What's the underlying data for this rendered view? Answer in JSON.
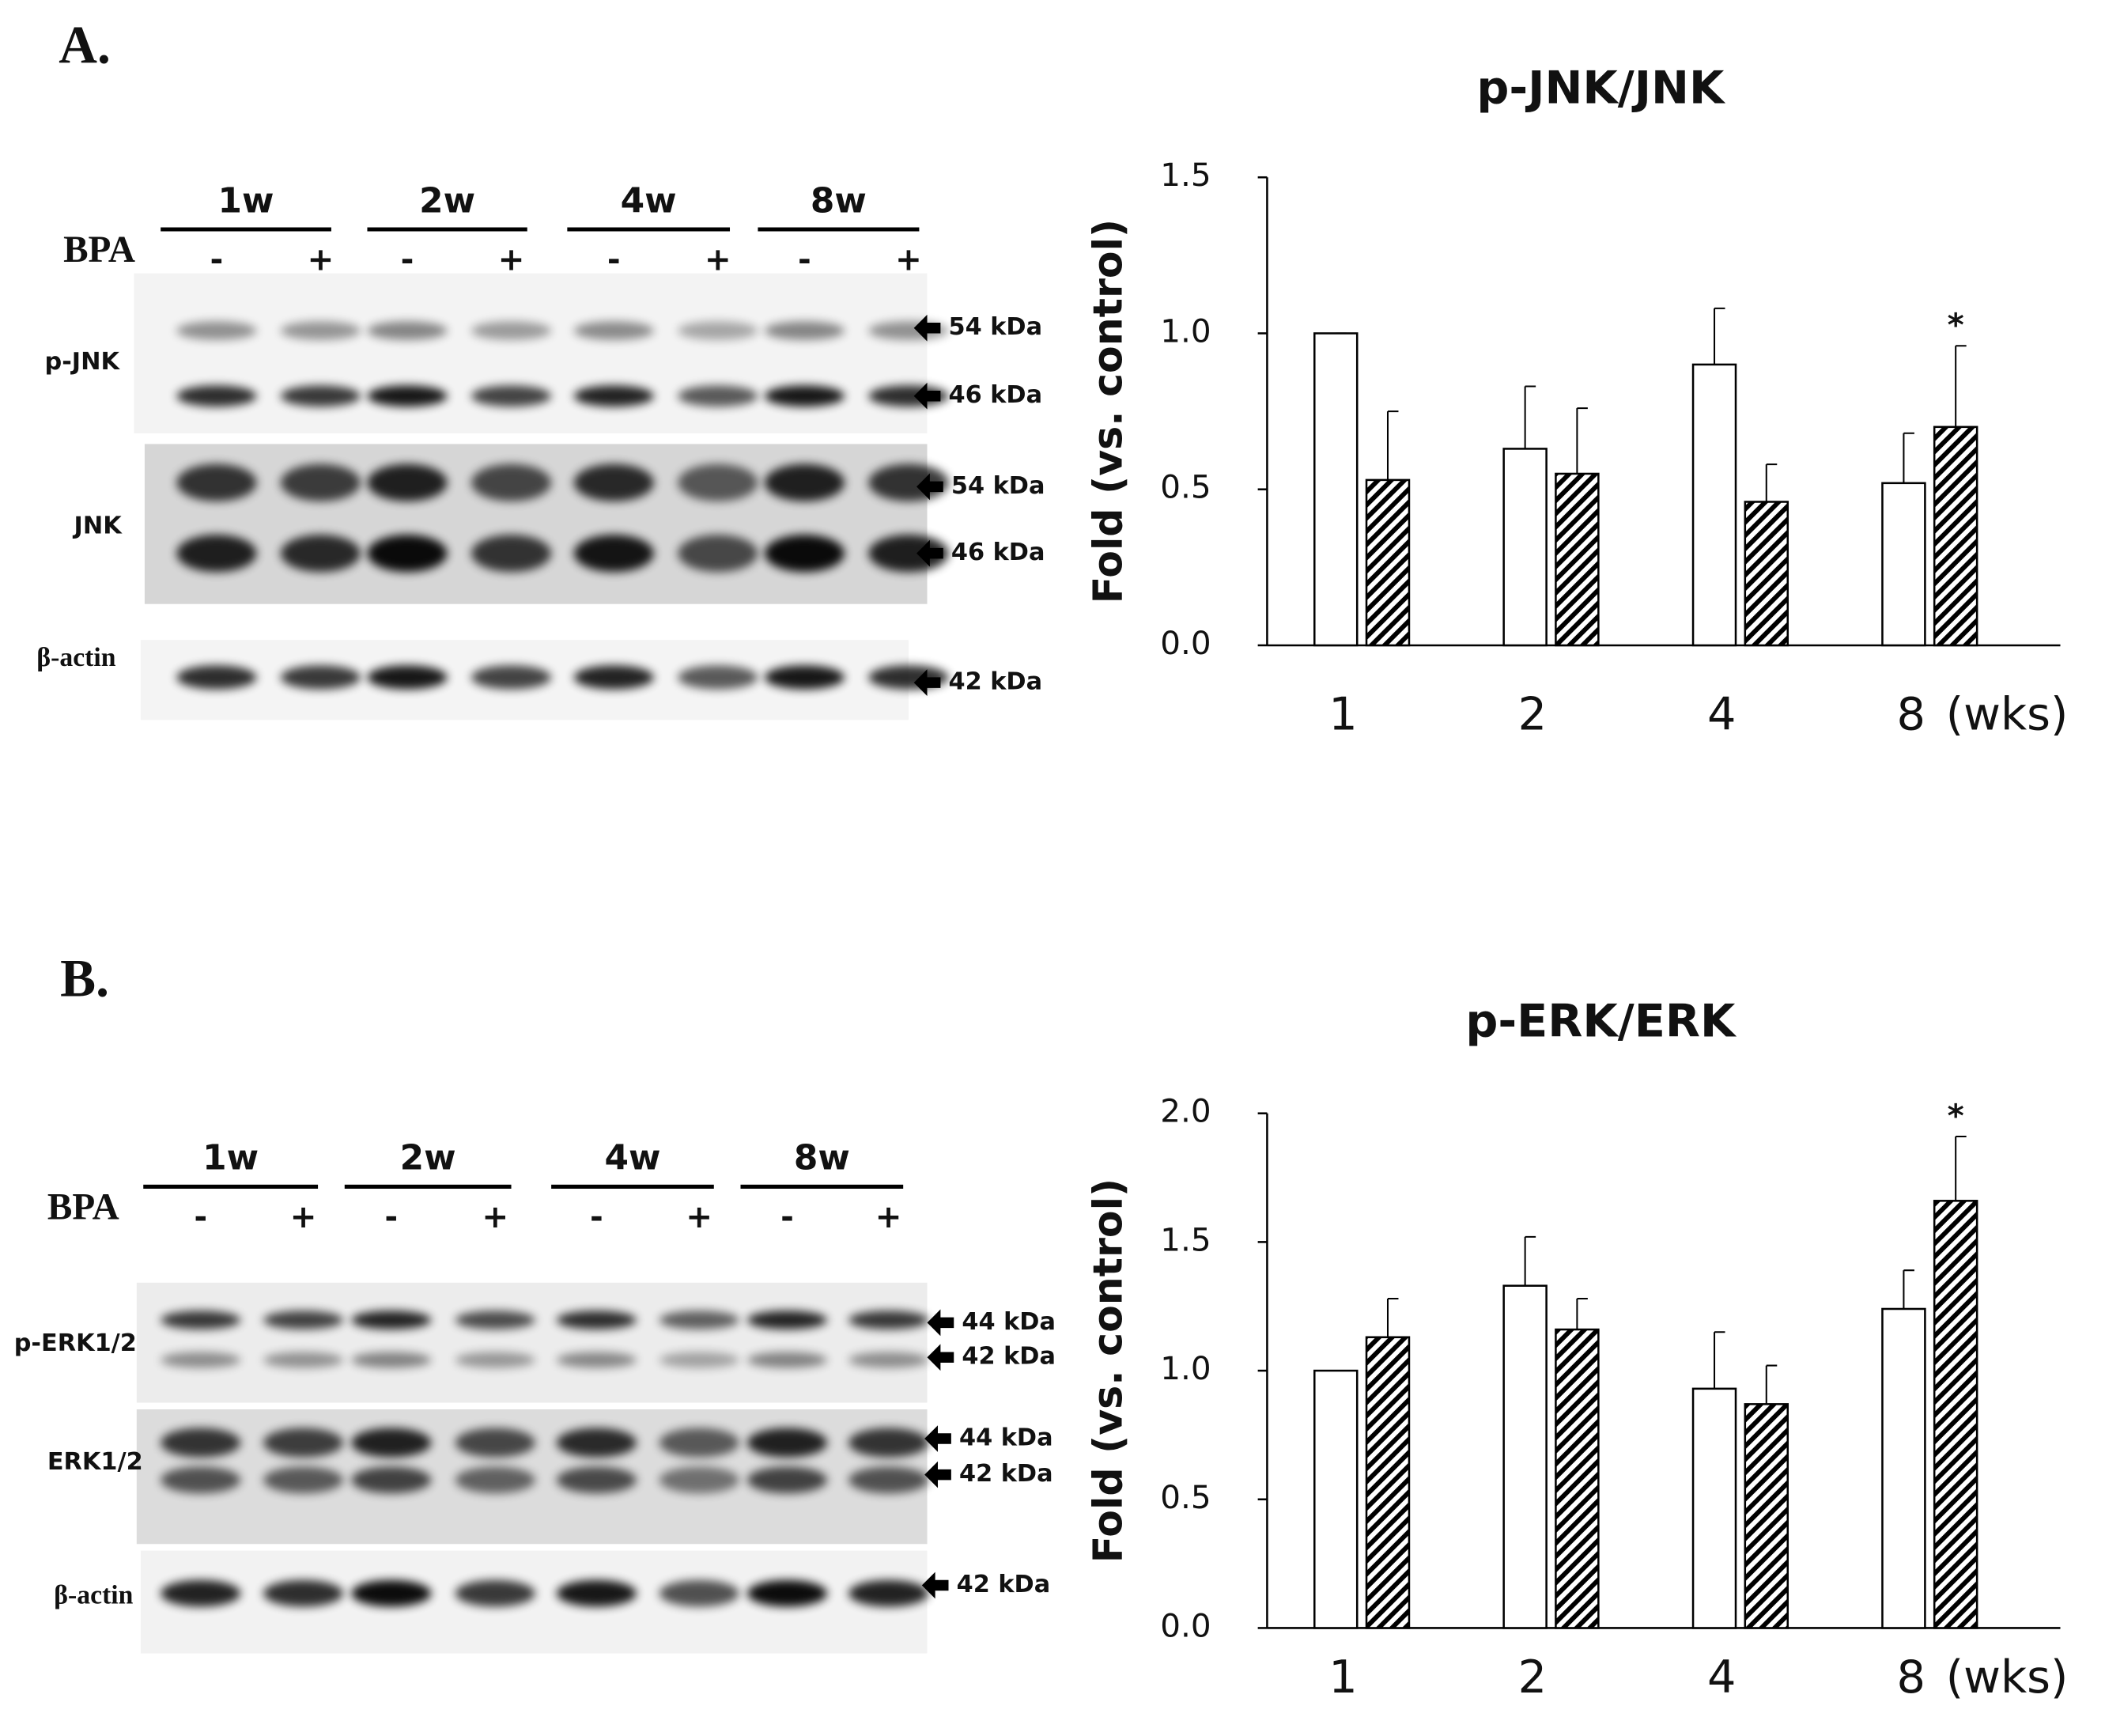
{
  "chart_data": [
    {
      "type": "bar",
      "title": "p-JNK/JNK",
      "y_label": "Fold (vs. control)",
      "x_unit": "(wks)",
      "categories": [
        "1",
        "2",
        "4",
        "8"
      ],
      "series": [
        {
          "color": "#ffffff",
          "hatch": false,
          "values": [
            1.0,
            0.63,
            0.9,
            0.52
          ],
          "errors": [
            0,
            0.2,
            0.18,
            0.16
          ]
        },
        {
          "color": "#000000",
          "hatch": true,
          "values": [
            0.53,
            0.55,
            0.46,
            0.7
          ],
          "errors": [
            0.22,
            0.21,
            0.12,
            0.26
          ],
          "significance": [
            null,
            null,
            null,
            "*"
          ]
        }
      ],
      "ylim": [
        0,
        1.5
      ],
      "yticks": [
        {
          "value": 0,
          "label": "0.0"
        },
        0.5,
        {
          "value": 1,
          "label": "1.0"
        },
        1.5
      ]
    },
    {
      "type": "bar",
      "title": "p-ERK/ERK",
      "y_label": "Fold (vs. control)",
      "x_unit": "(wks)",
      "categories": [
        "1",
        "2",
        "4",
        "8"
      ],
      "series": [
        {
          "color": "#ffffff",
          "hatch": false,
          "values": [
            1.0,
            1.33,
            0.93,
            1.24
          ],
          "errors": [
            0,
            0.19,
            0.22,
            0.15
          ]
        },
        {
          "color": "#000000",
          "hatch": true,
          "values": [
            1.13,
            1.16,
            0.87,
            1.66
          ],
          "errors": [
            0.15,
            0.12,
            0.15,
            0.25
          ],
          "significance": [
            null,
            null,
            null,
            "*"
          ]
        }
      ],
      "ylim": [
        0,
        2.0
      ],
      "yticks": [
        {
          "value": 0,
          "label": "0.0"
        },
        0.5,
        {
          "value": 1,
          "label": "1.0"
        },
        1.5,
        {
          "value": 2,
          "label": "2.0"
        }
      ]
    }
  ],
  "blots": [
    {
      "label": "A.",
      "treatment": "BPA",
      "groups": [
        "1w",
        "2w",
        "4w",
        "8w"
      ],
      "signs": [
        "-",
        "+",
        "-",
        "+",
        "-",
        "+",
        "-",
        "+"
      ],
      "rows": [
        {
          "label": "p-JNK",
          "markers": [
            "54 kDa",
            "46 kDa"
          ]
        },
        {
          "label": "JNK",
          "markers": [
            "54 kDa",
            "46 kDa"
          ]
        },
        {
          "label": "β-actin",
          "markers": [
            "42 kDa"
          ]
        }
      ]
    },
    {
      "label": "B.",
      "treatment": "BPA",
      "groups": [
        "1w",
        "2w",
        "4w",
        "8w"
      ],
      "signs": [
        "-",
        "+",
        "-",
        "+",
        "-",
        "+",
        "-",
        "+"
      ],
      "rows": [
        {
          "label": "p-ERK1/2",
          "markers": [
            "44 kDa",
            "42 kDa"
          ]
        },
        {
          "label": "ERK1/2",
          "markers": [
            "44 kDa",
            "42 kDa"
          ]
        },
        {
          "label": "β-actin",
          "markers": [
            "42 kDa"
          ]
        }
      ]
    }
  ]
}
